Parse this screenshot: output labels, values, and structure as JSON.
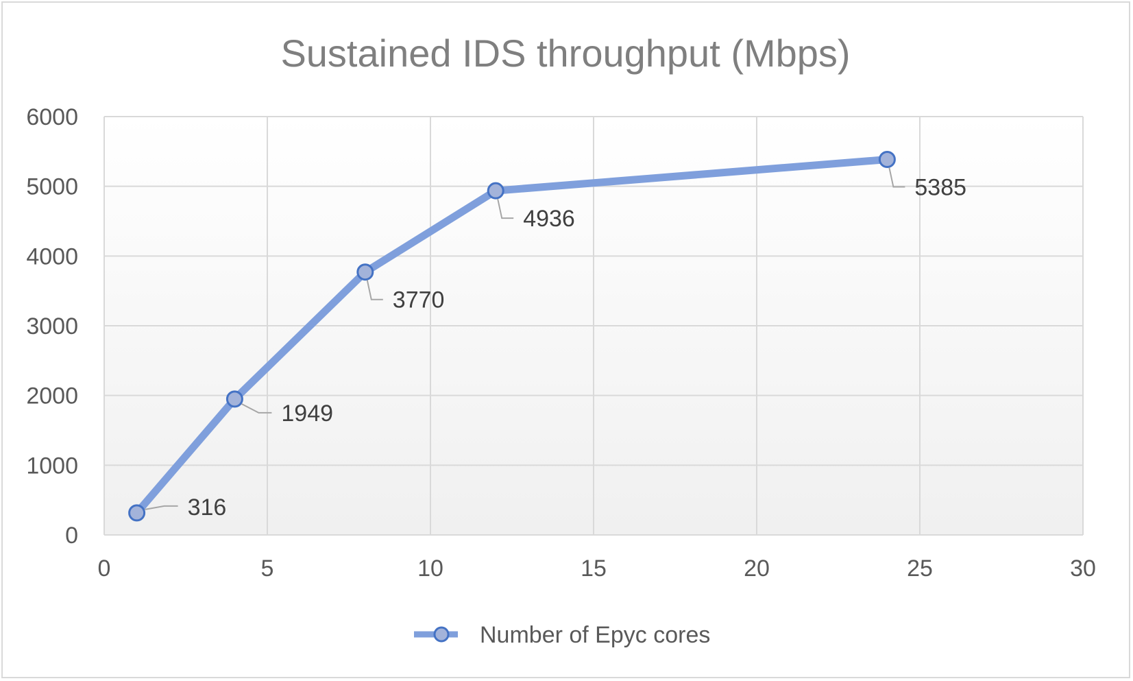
{
  "chart_data": {
    "type": "scatter",
    "title": "Sustained IDS throughput (Mbps)",
    "xlabel": "",
    "ylabel": "",
    "xlim": [
      0,
      30
    ],
    "ylim": [
      0,
      6000
    ],
    "xticks": [
      0,
      5,
      10,
      15,
      20,
      25,
      30
    ],
    "yticks": [
      0,
      1000,
      2000,
      3000,
      4000,
      5000,
      6000
    ],
    "grid": true,
    "legend_position": "bottom",
    "series": [
      {
        "name": "Number of Epyc cores",
        "x": [
          1,
          4,
          8,
          12,
          24
        ],
        "y": [
          316,
          1949,
          3770,
          4936,
          5385
        ],
        "labels": [
          "316",
          "1949",
          "3770",
          "4936",
          "5385"
        ],
        "line_color": "#7f9fdc",
        "marker_fill": "#a3b3da",
        "marker_stroke": "#4472c4"
      }
    ],
    "colors": {
      "grid": "#d9d9d9",
      "plot_background_top": "#ffffff",
      "plot_background_bottom": "#f0f0f0",
      "leader_line": "#a6a6a6"
    }
  }
}
